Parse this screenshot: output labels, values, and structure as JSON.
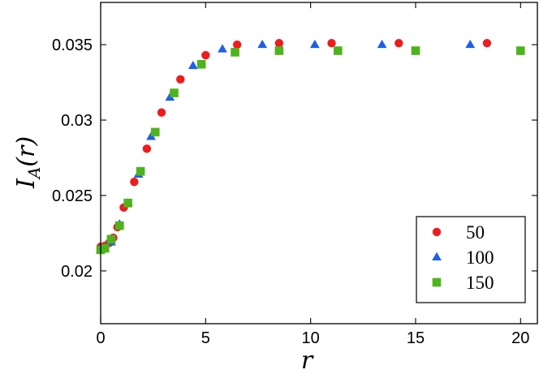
{
  "chart_data": {
    "type": "scatter",
    "title": "",
    "xlabel": "r",
    "ylabel": "I_A(r)",
    "ylabel_parts": {
      "base": "I",
      "subscript": "A",
      "argument": "(r)"
    },
    "xlim": [
      0,
      20.8
    ],
    "ylim": [
      0.0165,
      0.0378
    ],
    "x_ticks": [
      0,
      5,
      10,
      15,
      20
    ],
    "x_tick_labels": [
      "0",
      "5",
      "10",
      "15",
      "20"
    ],
    "y_ticks": [
      0.02,
      0.025,
      0.03,
      0.035
    ],
    "y_tick_labels": [
      "0.02",
      "0.025",
      "0.03",
      "0.035"
    ],
    "grid": false,
    "legend_position": "bottom-right",
    "series": [
      {
        "name": "50",
        "marker": "circle",
        "color": "#ee1c1c",
        "points": [
          {
            "x": 0.0,
            "y": 0.0216
          },
          {
            "x": 0.2,
            "y": 0.02165
          },
          {
            "x": 0.4,
            "y": 0.02185
          },
          {
            "x": 0.6,
            "y": 0.0222
          },
          {
            "x": 0.8,
            "y": 0.0229
          },
          {
            "x": 1.1,
            "y": 0.0242
          },
          {
            "x": 1.6,
            "y": 0.0259
          },
          {
            "x": 2.2,
            "y": 0.0281
          },
          {
            "x": 2.9,
            "y": 0.0305
          },
          {
            "x": 3.8,
            "y": 0.0327
          },
          {
            "x": 5.0,
            "y": 0.0343
          },
          {
            "x": 6.5,
            "y": 0.035
          },
          {
            "x": 8.5,
            "y": 0.0351
          },
          {
            "x": 11.0,
            "y": 0.0351
          },
          {
            "x": 14.2,
            "y": 0.0351
          },
          {
            "x": 18.4,
            "y": 0.0351
          }
        ]
      },
      {
        "name": "100",
        "marker": "triangle",
        "color": "#1f5fe8",
        "points": [
          {
            "x": 0.0,
            "y": 0.0214
          },
          {
            "x": 0.2,
            "y": 0.02155
          },
          {
            "x": 0.5,
            "y": 0.0219
          },
          {
            "x": 0.9,
            "y": 0.0231
          },
          {
            "x": 1.3,
            "y": 0.0245
          },
          {
            "x": 1.8,
            "y": 0.0264
          },
          {
            "x": 2.4,
            "y": 0.0289
          },
          {
            "x": 3.3,
            "y": 0.0315
          },
          {
            "x": 4.4,
            "y": 0.0336
          },
          {
            "x": 5.8,
            "y": 0.0347
          },
          {
            "x": 7.7,
            "y": 0.035
          },
          {
            "x": 10.2,
            "y": 0.035
          },
          {
            "x": 13.4,
            "y": 0.035
          },
          {
            "x": 17.6,
            "y": 0.035
          }
        ]
      },
      {
        "name": "150",
        "marker": "square",
        "color": "#4db41c",
        "points": [
          {
            "x": 0.0,
            "y": 0.0214
          },
          {
            "x": 0.2,
            "y": 0.0215
          },
          {
            "x": 0.5,
            "y": 0.0221
          },
          {
            "x": 0.9,
            "y": 0.023
          },
          {
            "x": 1.3,
            "y": 0.0245
          },
          {
            "x": 1.9,
            "y": 0.0266
          },
          {
            "x": 2.6,
            "y": 0.0292
          },
          {
            "x": 3.5,
            "y": 0.0318
          },
          {
            "x": 4.8,
            "y": 0.0337
          },
          {
            "x": 6.4,
            "y": 0.0345
          },
          {
            "x": 8.5,
            "y": 0.0346
          },
          {
            "x": 11.3,
            "y": 0.0346
          },
          {
            "x": 15.0,
            "y": 0.0346
          },
          {
            "x": 20.0,
            "y": 0.0346
          }
        ]
      }
    ]
  }
}
